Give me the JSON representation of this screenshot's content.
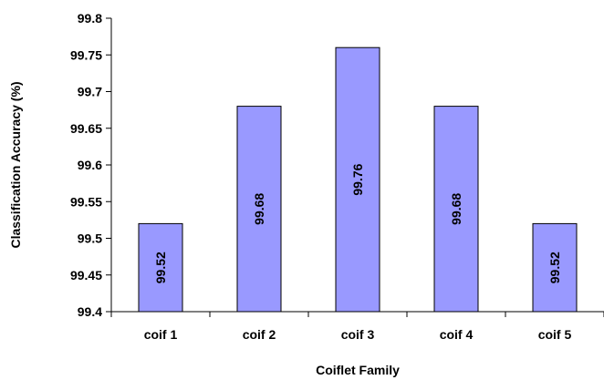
{
  "chart_data": {
    "type": "bar",
    "title": "",
    "xlabel": "Coiflet Family",
    "ylabel": "Classification Accuracy (%)",
    "categories": [
      "coif 1",
      "coif 2",
      "coif 3",
      "coif 4",
      "coif 5"
    ],
    "values": [
      99.52,
      99.68,
      99.76,
      99.68,
      99.52
    ],
    "data_labels": [
      "99.52",
      "99.68",
      "99.76",
      "99.68",
      "99.52"
    ],
    "ylim": [
      99.4,
      99.8
    ],
    "yticks": [
      "99.4",
      "99.45",
      "99.5",
      "99.55",
      "99.6",
      "99.65",
      "99.7",
      "99.75",
      "99.8"
    ],
    "grid": false,
    "legend": "none",
    "bar_color": "#9999ff",
    "bar_edge_color": "#000000"
  }
}
